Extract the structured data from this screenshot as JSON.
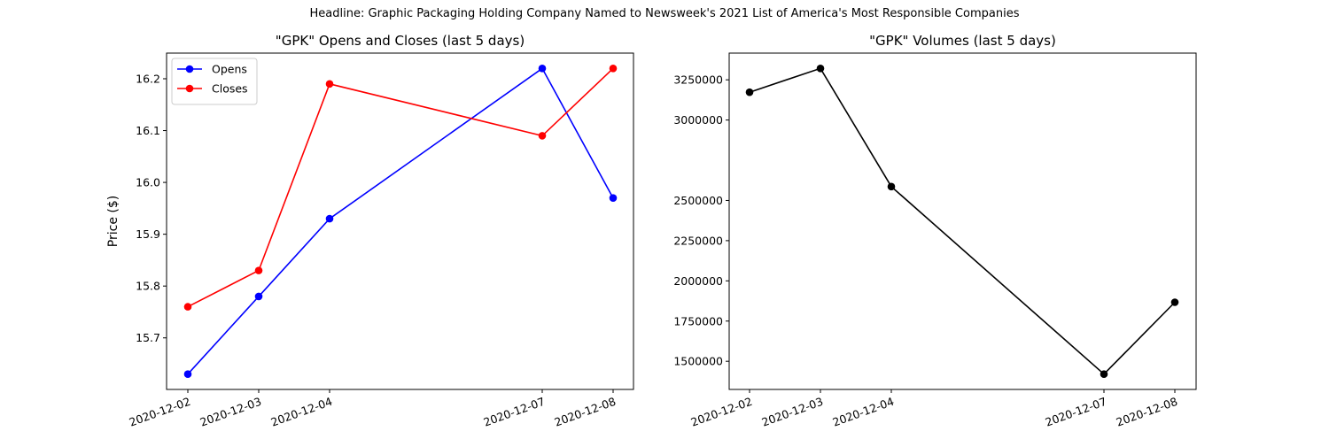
{
  "suptitle": "Headline: Graphic Packaging Holding Company Named to Newsweek's 2021 List of America's Most Responsible Companies",
  "chart_data": [
    {
      "type": "line",
      "title": "\"GPK\" Opens and Closes (last 5 days)",
      "xlabel": "",
      "ylabel": "Price ($)",
      "x": [
        "2020-12-02",
        "2020-12-03",
        "2020-12-04",
        "2020-12-07",
        "2020-12-08"
      ],
      "series": [
        {
          "name": "Opens",
          "color": "#0000ff",
          "values": [
            15.63,
            15.78,
            15.93,
            16.22,
            15.97
          ]
        },
        {
          "name": "Closes",
          "color": "#ff0000",
          "values": [
            15.76,
            15.83,
            16.19,
            16.09,
            16.22
          ]
        }
      ],
      "yticks": [
        "15.7",
        "15.8",
        "15.9",
        "16.0",
        "16.1",
        "16.2"
      ],
      "ylim": [
        15.6005,
        16.2495
      ],
      "legend": "top-left",
      "grid": false
    },
    {
      "type": "line",
      "title": "\"GPK\" Volumes (last 5 days)",
      "xlabel": "",
      "ylabel": "",
      "x": [
        "2020-12-02",
        "2020-12-03",
        "2020-12-04",
        "2020-12-07",
        "2020-12-08"
      ],
      "series": [
        {
          "color": "#000000",
          "values": [
            3173000,
            3321000,
            2586000,
            1420000,
            1867000
          ]
        }
      ],
      "yticks": [
        "1500000",
        "1750000",
        "2000000",
        "2250000",
        "2500000",
        "3000000",
        "3250000"
      ],
      "ytick_values": [
        1500000,
        1750000,
        2000000,
        2250000,
        2500000,
        3000000,
        3250000
      ],
      "ylim": [
        1324950,
        3416050
      ],
      "legend": "none",
      "grid": false
    }
  ]
}
